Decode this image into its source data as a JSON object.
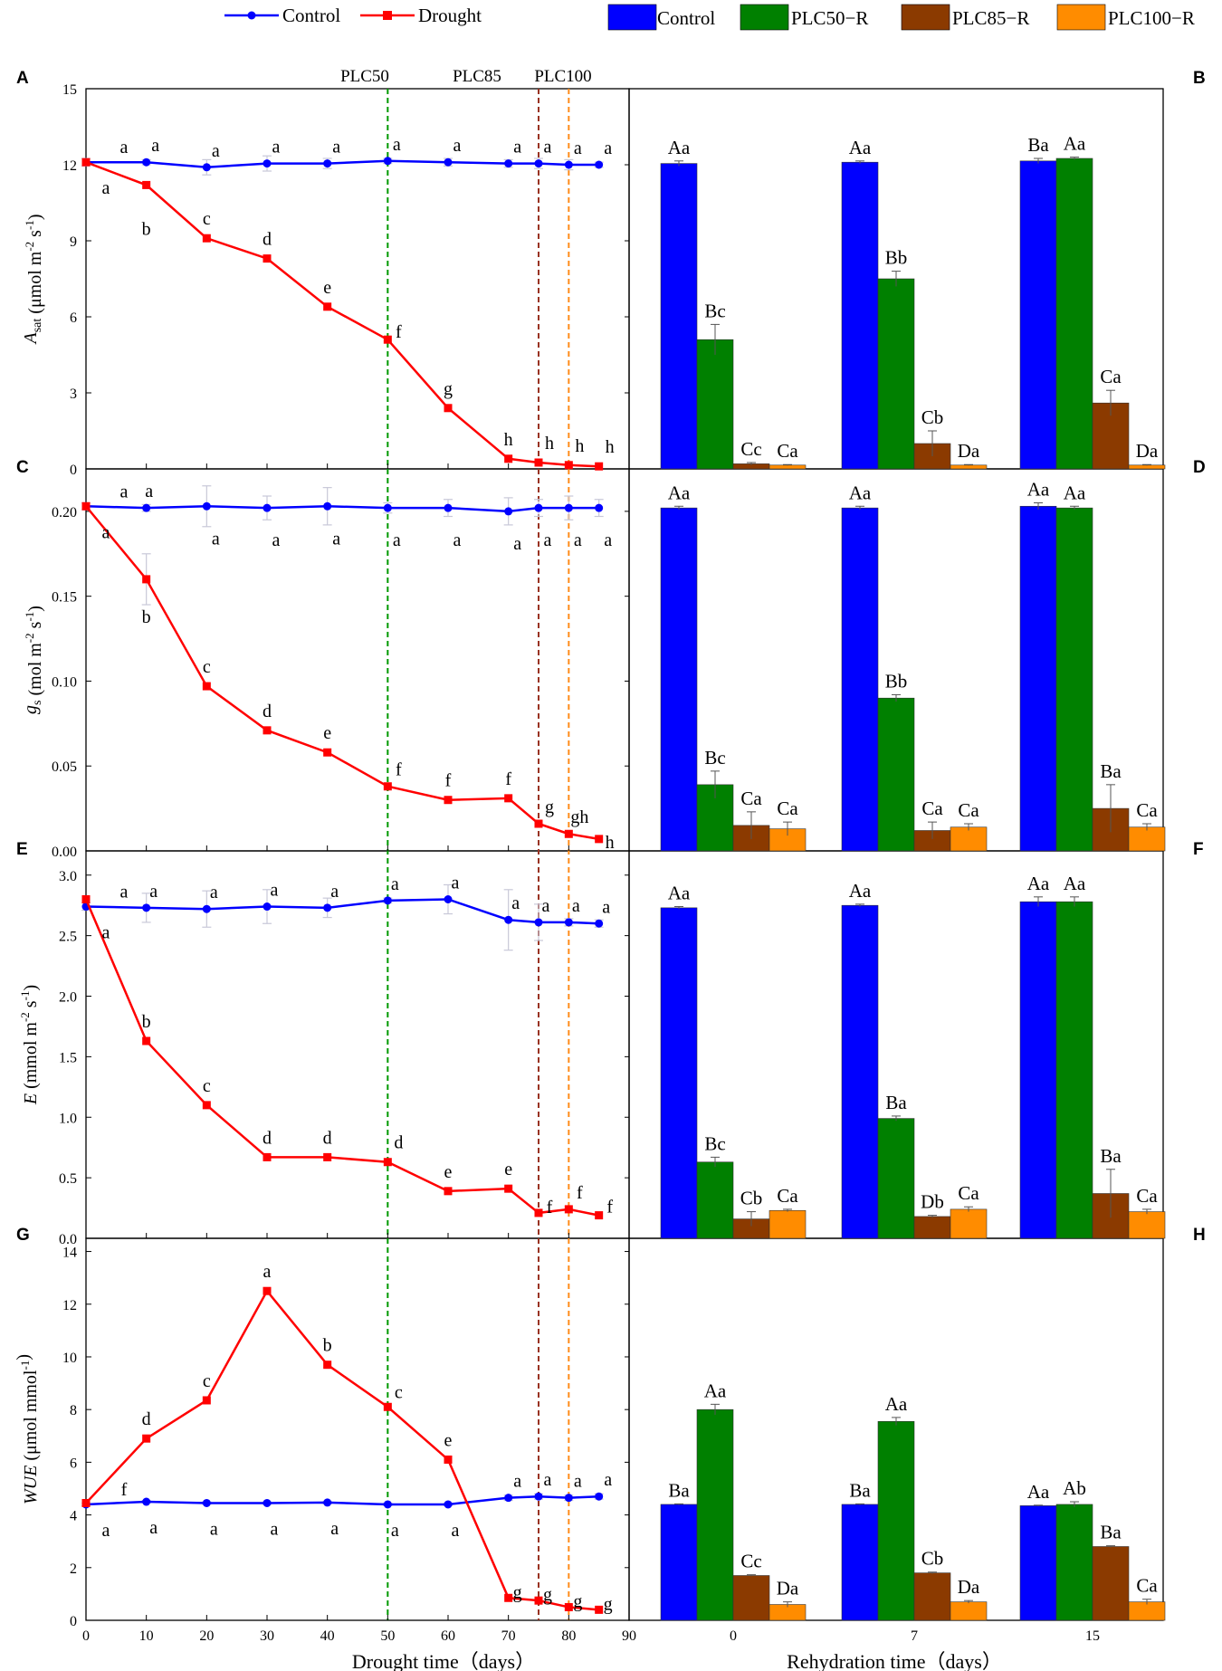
{
  "legend": {
    "control": "Control",
    "drought": "Drought"
  },
  "bar_legend": [
    "Control",
    "PLC50−R",
    "PLC85−R",
    "PLC100−R"
  ],
  "colors": {
    "control_line": "#0000ff",
    "drought_line": "#ff0000",
    "bars": [
      "#0000ff",
      "#008000",
      "#8b3a00",
      "#ff8c00"
    ],
    "vline": [
      "#009900",
      "#993322",
      "#ff8c1a"
    ],
    "error": "#c8c8d8"
  },
  "vlines": [
    {
      "label": "PLC50",
      "x": 50
    },
    {
      "label": "PLC85",
      "x": 75
    },
    {
      "label": "PLC100",
      "x": 80
    }
  ],
  "left_xaxis": {
    "label": "Drought time（days）",
    "range": [
      0,
      90
    ],
    "ticks": [
      "0",
      "10",
      "20",
      "30",
      "40",
      "50",
      "60",
      "70",
      "80",
      "90"
    ]
  },
  "right_xaxis": {
    "label": "Rehydration time（days）",
    "categories": [
      "0",
      "7",
      "15"
    ]
  },
  "chart_data": [
    {
      "panel": "A",
      "type": "line",
      "ylabel": "Asat (μmol m⁻² s⁻¹)",
      "ylabel_main": "A",
      "ylabel_sub": "sat",
      "ylabel_rest": " (μmol m",
      "ylabel_sup1": "-2",
      "ylabel_mid": " s",
      "ylabel_sup2": "-1",
      "ylabel_end": ")",
      "ylim": [
        0,
        15
      ],
      "yticks": [
        "0",
        "3",
        "6",
        "9",
        "12",
        "15"
      ],
      "x": [
        0,
        10,
        20,
        30,
        40,
        50,
        60,
        70,
        75,
        80,
        85
      ],
      "series": [
        {
          "name": "Control",
          "values": [
            12.1,
            12.1,
            11.9,
            12.05,
            12.05,
            12.15,
            12.1,
            12.05,
            12.05,
            12.0,
            12.0
          ],
          "err": [
            0.15,
            0.1,
            0.3,
            0.3,
            0.2,
            0.1,
            0.15,
            0.15,
            0.2,
            0.2,
            0.1
          ],
          "labels": [
            "a",
            "a",
            "a",
            "a",
            "a",
            "a",
            "a",
            "a",
            "a",
            "a",
            "a"
          ]
        },
        {
          "name": "Drought",
          "values": [
            12.1,
            11.2,
            9.1,
            8.3,
            6.4,
            5.1,
            2.4,
            0.4,
            0.25,
            0.15,
            0.1
          ],
          "err": [
            0,
            0,
            0,
            0,
            0,
            0,
            0,
            0,
            0,
            0,
            0
          ],
          "labels": [
            "a",
            "b",
            "c",
            "d",
            "e",
            "f",
            "g",
            "h",
            "h",
            "h",
            "h"
          ]
        }
      ]
    },
    {
      "panel": "B",
      "type": "bar",
      "ylim": [
        0,
        15
      ],
      "categories": [
        "0",
        "7",
        "15"
      ],
      "series": [
        {
          "name": "Control",
          "values": [
            12.05,
            12.1,
            12.15
          ],
          "err": [
            0.1,
            0.05,
            0.1
          ],
          "labels": [
            "Aa",
            "Aa",
            "Ba"
          ]
        },
        {
          "name": "PLC50-R",
          "values": [
            5.1,
            7.5,
            12.25
          ],
          "err": [
            0.6,
            0.3,
            0.05
          ],
          "labels": [
            "Bc",
            "Bb",
            "Aa"
          ]
        },
        {
          "name": "PLC85-R",
          "values": [
            0.2,
            1.0,
            2.6
          ],
          "err": [
            0.05,
            0.5,
            0.5
          ],
          "labels": [
            "Cc",
            "Cb",
            "Ca"
          ]
        },
        {
          "name": "PLC100-R",
          "values": [
            0.15,
            0.15,
            0.15
          ],
          "err": [
            0.02,
            0.02,
            0.02
          ],
          "labels": [
            "Ca",
            "Da",
            "Da"
          ]
        }
      ]
    },
    {
      "panel": "C",
      "type": "line",
      "ylabel_main": "g",
      "ylabel_sub": "s",
      "ylabel_rest": " (mol m",
      "ylabel_sup1": "-2",
      "ylabel_mid": " s",
      "ylabel_sup2": "-1",
      "ylabel_end": ")",
      "ylim": [
        0,
        0.225
      ],
      "yticks": [
        "0.00",
        "0.05",
        "0.10",
        "0.15",
        "0.20"
      ],
      "x": [
        0,
        10,
        20,
        30,
        40,
        50,
        60,
        70,
        75,
        80,
        85
      ],
      "series": [
        {
          "name": "Control",
          "values": [
            0.203,
            0.202,
            0.203,
            0.202,
            0.203,
            0.202,
            0.202,
            0.2,
            0.202,
            0.202,
            0.202
          ],
          "err": [
            0.002,
            0.002,
            0.012,
            0.007,
            0.011,
            0.003,
            0.005,
            0.008,
            0.005,
            0.007,
            0.005
          ],
          "labels": [
            "a",
            "a",
            "a",
            "a",
            "a",
            "a",
            "a",
            "a",
            "a",
            "a",
            "a"
          ]
        },
        {
          "name": "Drought",
          "values": [
            0.203,
            0.16,
            0.097,
            0.071,
            0.058,
            0.038,
            0.03,
            0.031,
            0.016,
            0.01,
            0.007
          ],
          "err": [
            0,
            0.015,
            0,
            0,
            0,
            0,
            0,
            0,
            0,
            0,
            0
          ],
          "labels": [
            "a",
            "b",
            "c",
            "d",
            "e",
            "f",
            "f",
            "f",
            "g",
            "gh",
            "h"
          ]
        }
      ]
    },
    {
      "panel": "D",
      "type": "bar",
      "ylim": [
        0,
        0.225
      ],
      "categories": [
        "0",
        "7",
        "15"
      ],
      "series": [
        {
          "name": "Control",
          "values": [
            0.202,
            0.202,
            0.203
          ],
          "err": [
            0.001,
            0.001,
            0.002
          ],
          "labels": [
            "Aa",
            "Aa",
            "Aa"
          ]
        },
        {
          "name": "PLC50-R",
          "values": [
            0.039,
            0.09,
            0.202
          ],
          "err": [
            0.008,
            0.002,
            0.001
          ],
          "labels": [
            "Bc",
            "Bb",
            "Aa"
          ]
        },
        {
          "name": "PLC85-R",
          "values": [
            0.015,
            0.012,
            0.025
          ],
          "err": [
            0.008,
            0.005,
            0.014
          ],
          "labels": [
            "Ca",
            "Ca",
            "Ba"
          ]
        },
        {
          "name": "PLC100-R",
          "values": [
            0.013,
            0.014,
            0.014
          ],
          "err": [
            0.004,
            0.002,
            0.002
          ],
          "labels": [
            "Ca",
            "Ca",
            "Ca"
          ]
        }
      ]
    },
    {
      "panel": "E",
      "type": "line",
      "ylabel_main": "E",
      "ylabel_sub": "",
      "ylabel_rest": " (mmol m",
      "ylabel_sup1": "-2",
      "ylabel_mid": " s",
      "ylabel_sup2": "-1",
      "ylabel_end": ")",
      "ylim": [
        0,
        3.2
      ],
      "yticks": [
        "0.0",
        "0.5",
        "1.0",
        "1.5",
        "2.0",
        "2.5",
        "3.0"
      ],
      "x": [
        0,
        10,
        20,
        30,
        40,
        50,
        60,
        70,
        75,
        80,
        85
      ],
      "series": [
        {
          "name": "Control",
          "values": [
            2.74,
            2.73,
            2.72,
            2.74,
            2.73,
            2.79,
            2.8,
            2.63,
            2.61,
            2.61,
            2.6
          ],
          "err": [
            0.03,
            0.12,
            0.15,
            0.14,
            0.08,
            0.02,
            0.12,
            0.25,
            0.15,
            0.03,
            0.03
          ],
          "labels": [
            "a",
            "a",
            "a",
            "a",
            "a",
            "a",
            "a",
            "a",
            "a",
            "a",
            "a"
          ]
        },
        {
          "name": "Drought",
          "values": [
            2.8,
            1.63,
            1.1,
            0.67,
            0.67,
            0.63,
            0.39,
            0.41,
            0.21,
            0.24,
            0.19
          ],
          "err": [
            0,
            0,
            0,
            0,
            0,
            0,
            0,
            0,
            0,
            0,
            0
          ],
          "labels": [
            "a",
            "b",
            "c",
            "d",
            "d",
            "d",
            "e",
            "e",
            "f",
            "f",
            "f"
          ]
        }
      ]
    },
    {
      "panel": "F",
      "type": "bar",
      "ylim": [
        0,
        3.2
      ],
      "categories": [
        "0",
        "7",
        "15"
      ],
      "series": [
        {
          "name": "Control",
          "values": [
            2.73,
            2.75,
            2.78
          ],
          "err": [
            0.01,
            0.01,
            0.04
          ],
          "labels": [
            "Aa",
            "Aa",
            "Aa"
          ]
        },
        {
          "name": "PLC50-R",
          "values": [
            0.63,
            0.99,
            2.78
          ],
          "err": [
            0.04,
            0.02,
            0.04
          ],
          "labels": [
            "Bc",
            "Ba",
            "Aa"
          ]
        },
        {
          "name": "PLC85-R",
          "values": [
            0.16,
            0.18,
            0.37
          ],
          "err": [
            0.06,
            0.01,
            0.2
          ],
          "labels": [
            "Cb",
            "Db",
            "Ba"
          ]
        },
        {
          "name": "PLC100-R",
          "values": [
            0.23,
            0.24,
            0.22
          ],
          "err": [
            0.01,
            0.02,
            0.02
          ],
          "labels": [
            "Ca",
            "Ca",
            "Ca"
          ]
        }
      ]
    },
    {
      "panel": "G",
      "type": "line",
      "ylabel_main": "WUE",
      "ylabel_sub": "",
      "ylabel_rest": " (μmol mmol",
      "ylabel_sup1": "-1",
      "ylabel_mid": "",
      "ylabel_sup2": "",
      "ylabel_end": ")",
      "ylim": [
        0,
        14.5
      ],
      "yticks": [
        "0",
        "2",
        "4",
        "6",
        "8",
        "10",
        "12",
        "14"
      ],
      "x": [
        0,
        10,
        20,
        30,
        40,
        50,
        60,
        70,
        75,
        80,
        85
      ],
      "series": [
        {
          "name": "Control",
          "values": [
            4.4,
            4.5,
            4.45,
            4.45,
            4.47,
            4.4,
            4.4,
            4.65,
            4.7,
            4.65,
            4.7
          ],
          "err": [
            0.05,
            0.05,
            0.05,
            0.05,
            0.05,
            0.05,
            0.05,
            0.1,
            0.1,
            0.1,
            0.1
          ],
          "labels": [
            "a",
            "a",
            "a",
            "a",
            "a",
            "a",
            "a",
            "a",
            "a",
            "a",
            "a"
          ]
        },
        {
          "name": "Drought",
          "values": [
            4.45,
            6.9,
            8.35,
            12.5,
            9.7,
            8.1,
            6.1,
            0.85,
            0.75,
            0.5,
            0.4
          ],
          "err": [
            0,
            0,
            0,
            0,
            0,
            0,
            0,
            0,
            0,
            0,
            0
          ],
          "labels": [
            "f",
            "d",
            "c",
            "a",
            "b",
            "c",
            "e",
            "g",
            "g",
            "g",
            "g"
          ]
        }
      ]
    },
    {
      "panel": "H",
      "type": "bar",
      "ylim": [
        0,
        14.5
      ],
      "categories": [
        "0",
        "7",
        "15"
      ],
      "series": [
        {
          "name": "Control",
          "values": [
            4.4,
            4.4,
            4.35
          ],
          "err": [
            0.02,
            0.02,
            0.02
          ],
          "labels": [
            "Ba",
            "Ba",
            "Aa"
          ]
        },
        {
          "name": "PLC50-R",
          "values": [
            8.0,
            7.55,
            4.4
          ],
          "err": [
            0.2,
            0.15,
            0.1
          ],
          "labels": [
            "Aa",
            "Aa",
            "Ab"
          ]
        },
        {
          "name": "PLC85-R",
          "values": [
            1.7,
            1.8,
            2.8
          ],
          "err": [
            0.03,
            0.03,
            0.03
          ],
          "labels": [
            "Cc",
            "Cb",
            "Ba"
          ]
        },
        {
          "name": "PLC100-R",
          "values": [
            0.6,
            0.7,
            0.7
          ],
          "err": [
            0.1,
            0.05,
            0.1
          ],
          "labels": [
            "Da",
            "Da",
            "Ca"
          ]
        }
      ]
    }
  ]
}
